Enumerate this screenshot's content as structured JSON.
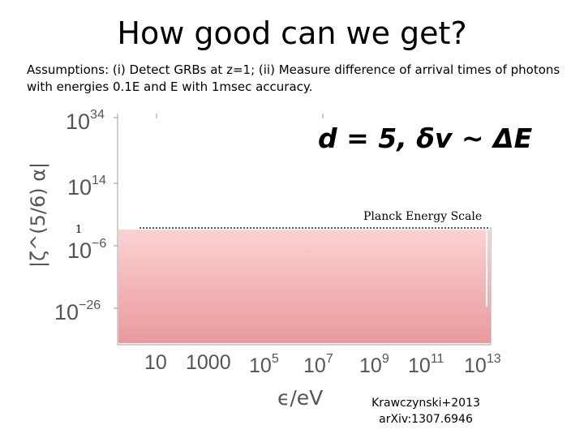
{
  "slide": {
    "title": "How good can we get?",
    "assumptions": "Assumptions: (i) Detect GRBs at z=1; (ii) Measure difference of arrival times of photons with energies 0.1E and E with 1msec accuracy.",
    "credit_line1": "Krawczynski+2013",
    "credit_line2": "arXiv:1307.6946"
  },
  "chart_data": {
    "type": "area",
    "scale": "log-log",
    "title": "d = 5, δv ~ ΔE",
    "xlabel": "ϵ/eV",
    "ylabel": "|ζ^(5/6) α|",
    "xticks": [
      {
        "base": "10",
        "exp": ""
      },
      {
        "base": "1000",
        "exp": ""
      },
      {
        "base": "10",
        "exp": "5"
      },
      {
        "base": "10",
        "exp": "7"
      },
      {
        "base": "10",
        "exp": "9"
      },
      {
        "base": "10",
        "exp": "11"
      },
      {
        "base": "10",
        "exp": "13"
      }
    ],
    "yticks": [
      {
        "base": "10",
        "exp": "34"
      },
      {
        "base": "10",
        "exp": "14"
      },
      {
        "base": "10",
        "exp": "−6"
      },
      {
        "base": "10",
        "exp": "−26"
      }
    ],
    "annotations": {
      "reference_value": "1",
      "planck_label": "Planck Energy Scale"
    },
    "planck_reference_level": 1,
    "excluded_region_upper": 1,
    "fill_color_top": "#fcd2d2",
    "fill_color_bottom": "#e89a9d",
    "axis_color": "#bfbfbf"
  }
}
